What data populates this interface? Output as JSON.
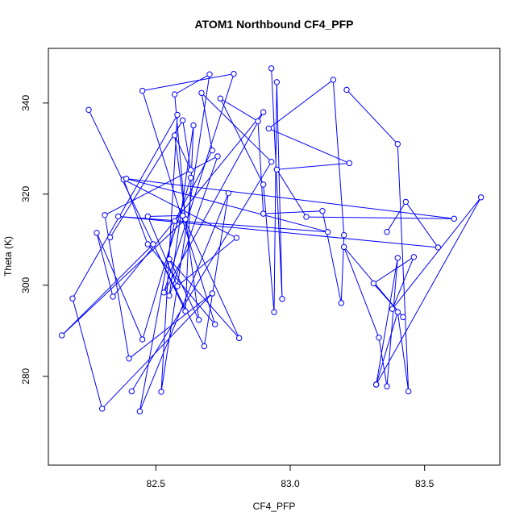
{
  "chart_data": {
    "type": "scatter",
    "title": "ATOM1 Northbound CF4_PFP",
    "xlabel": "CF4_PFP",
    "ylabel": "Theta (K)",
    "xlim": [
      82.1,
      83.78
    ],
    "ylim": [
      260.5,
      352
    ],
    "x_ticks": [
      82.5,
      83.0,
      83.5
    ],
    "x_tick_labels": [
      "82.5",
      "83.0",
      "83.5"
    ],
    "y_ticks": [
      280,
      300,
      320,
      340
    ],
    "y_tick_labels": [
      "280",
      "300",
      "320",
      "340"
    ],
    "grid": false,
    "legend": "none",
    "series_color": "#0000ff",
    "series": [
      {
        "values": [
          {
            "x": 82.25,
            "y": 338.5
          },
          {
            "x": 82.61,
            "y": 294.3
          },
          {
            "x": 82.64,
            "y": 335.1
          },
          {
            "x": 82.55,
            "y": 297.7
          },
          {
            "x": 82.73,
            "y": 328.3
          },
          {
            "x": 82.31,
            "y": 315.4
          },
          {
            "x": 82.4,
            "y": 283.9
          },
          {
            "x": 82.71,
            "y": 298.2
          },
          {
            "x": 82.3,
            "y": 272.9
          },
          {
            "x": 82.19,
            "y": 297.1
          },
          {
            "x": 82.58,
            "y": 337.4
          },
          {
            "x": 82.52,
            "y": 276.6
          },
          {
            "x": 82.7,
            "y": 346.3
          },
          {
            "x": 82.57,
            "y": 341.9
          },
          {
            "x": 82.61,
            "y": 314.5
          },
          {
            "x": 82.15,
            "y": 289.0
          },
          {
            "x": 82.49,
            "y": 309.0
          },
          {
            "x": 82.68,
            "y": 286.6
          },
          {
            "x": 82.77,
            "y": 320.2
          },
          {
            "x": 82.44,
            "y": 272.3
          },
          {
            "x": 82.57,
            "y": 314.1
          },
          {
            "x": 82.71,
            "y": 329.6
          },
          {
            "x": 82.67,
            "y": 342.2
          },
          {
            "x": 82.93,
            "y": 327.1
          },
          {
            "x": 82.41,
            "y": 276.7
          }
        ]
      },
      {
        "values": [
          {
            "x": 82.33,
            "y": 310.5
          },
          {
            "x": 82.6,
            "y": 336.2
          },
          {
            "x": 82.63,
            "y": 325.3
          },
          {
            "x": 82.57,
            "y": 332.9
          },
          {
            "x": 82.66,
            "y": 292.4
          },
          {
            "x": 82.55,
            "y": 305.7
          },
          {
            "x": 82.81,
            "y": 288.4
          },
          {
            "x": 82.6,
            "y": 315.3
          },
          {
            "x": 82.47,
            "y": 315.1
          },
          {
            "x": 82.58,
            "y": 299.8
          },
          {
            "x": 82.8,
            "y": 310.4
          },
          {
            "x": 82.38,
            "y": 323.2
          },
          {
            "x": 82.47,
            "y": 309.0
          },
          {
            "x": 82.72,
            "y": 291.4
          },
          {
            "x": 82.45,
            "y": 342.7
          },
          {
            "x": 82.79,
            "y": 346.4
          },
          {
            "x": 82.53,
            "y": 298.4
          },
          {
            "x": 82.9,
            "y": 338.0
          },
          {
            "x": 82.34,
            "y": 297.5
          },
          {
            "x": 82.28,
            "y": 311.5
          },
          {
            "x": 82.45,
            "y": 288.1
          },
          {
            "x": 82.63,
            "y": 323.6
          }
        ]
      },
      {
        "values": [
          {
            "x": 82.93,
            "y": 347.6
          },
          {
            "x": 82.97,
            "y": 297.0
          },
          {
            "x": 82.95,
            "y": 344.6
          },
          {
            "x": 82.94,
            "y": 294.1
          },
          {
            "x": 82.9,
            "y": 322.1
          },
          {
            "x": 82.74,
            "y": 341.0
          },
          {
            "x": 82.88,
            "y": 336.0
          },
          {
            "x": 82.9,
            "y": 315.7
          },
          {
            "x": 83.12,
            "y": 316.3
          },
          {
            "x": 83.19,
            "y": 296.1
          },
          {
            "x": 83.2,
            "y": 311.0
          },
          {
            "x": 83.16,
            "y": 345.1
          },
          {
            "x": 82.92,
            "y": 334.4
          },
          {
            "x": 83.22,
            "y": 326.8
          },
          {
            "x": 82.95,
            "y": 325.4
          },
          {
            "x": 83.06,
            "y": 315.0
          },
          {
            "x": 83.61,
            "y": 314.6
          },
          {
            "x": 82.39,
            "y": 323.4
          },
          {
            "x": 83.14,
            "y": 311.7
          },
          {
            "x": 82.36,
            "y": 315.1
          },
          {
            "x": 83.55,
            "y": 308.3
          },
          {
            "x": 83.43,
            "y": 318.3
          },
          {
            "x": 83.36,
            "y": 311.7
          }
        ]
      },
      {
        "values": [
          {
            "x": 83.21,
            "y": 342.9
          },
          {
            "x": 83.4,
            "y": 331.0
          },
          {
            "x": 83.44,
            "y": 276.7
          },
          {
            "x": 83.4,
            "y": 294.1
          },
          {
            "x": 83.32,
            "y": 278.2
          },
          {
            "x": 83.4,
            "y": 306.0
          },
          {
            "x": 83.36,
            "y": 277.8
          },
          {
            "x": 83.33,
            "y": 288.5
          },
          {
            "x": 83.2,
            "y": 308.4
          },
          {
            "x": 83.42,
            "y": 293.0
          },
          {
            "x": 83.31,
            "y": 300.4
          },
          {
            "x": 83.46,
            "y": 306.2
          },
          {
            "x": 83.38,
            "y": 294.8
          },
          {
            "x": 83.71,
            "y": 319.3
          },
          {
            "x": 83.32,
            "y": 278.2
          }
        ]
      }
    ]
  }
}
